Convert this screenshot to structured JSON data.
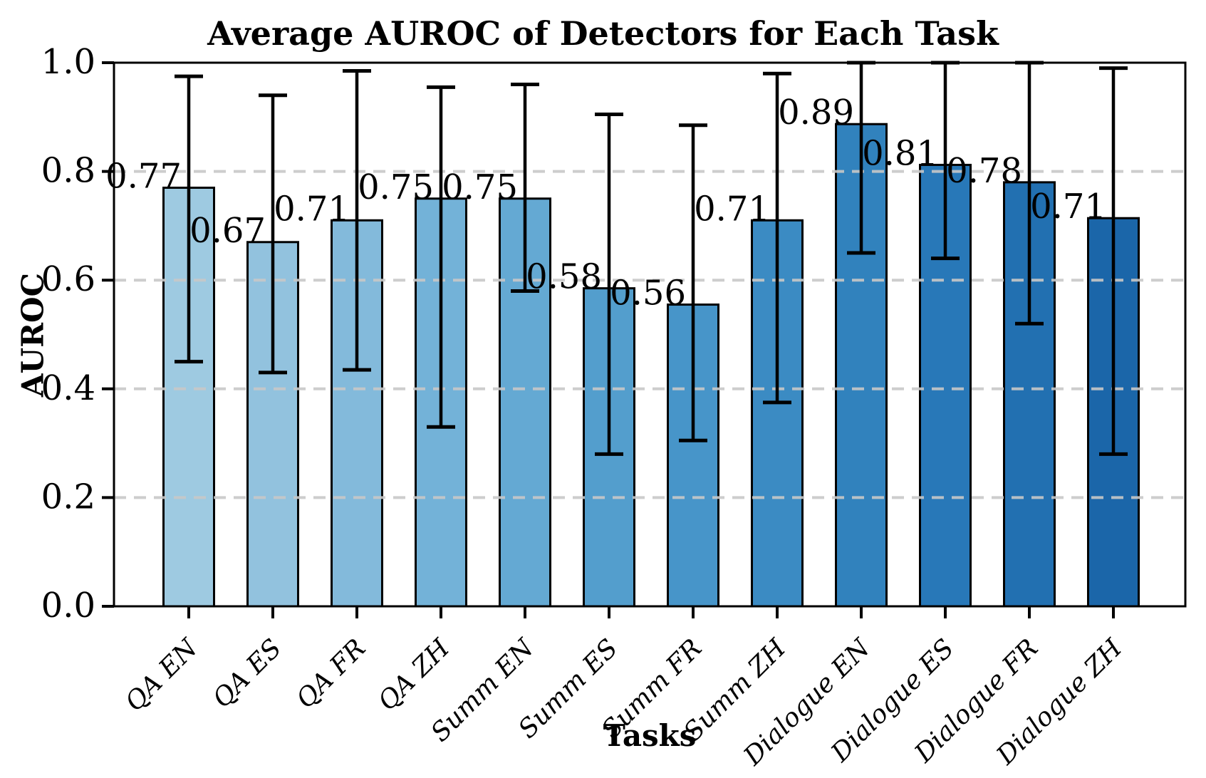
{
  "figure": {
    "background": "#ffffff"
  },
  "chart_data": {
    "type": "bar",
    "title": "Average AUROC of Detectors for Each Task",
    "xlabel": "Tasks",
    "ylabel": "AUROC",
    "ylim": [
      0.0,
      1.0
    ],
    "ytick_labels": [
      "0.0",
      "0.2",
      "0.4",
      "0.6",
      "0.8",
      "1.0"
    ],
    "ytick_values": [
      0.0,
      0.2,
      0.4,
      0.6,
      0.8,
      1.0
    ],
    "grid": {
      "show": true,
      "values": [
        0.2,
        0.4,
        0.6,
        0.8
      ],
      "style": "dashed",
      "color": "#c8c8c8"
    },
    "legend": "none",
    "axis_color": "#000000",
    "bar_edge_color": "#000000",
    "error_bar_color": "#000000",
    "categories": [
      "QA EN",
      "QA ES",
      "QA FR",
      "QA ZH",
      "Summ EN",
      "Summ ES",
      "Summ FR",
      "Summ ZH",
      "Dialogue EN",
      "Dialogue ES",
      "Dialogue FR",
      "Dialogue ZH"
    ],
    "series": [
      {
        "name": "Average AUROC",
        "values": [
          0.77,
          0.67,
          0.71,
          0.75,
          0.75,
          0.585,
          0.555,
          0.71,
          0.887,
          0.812,
          0.78,
          0.714
        ],
        "value_labels": [
          "0.77",
          "0.67",
          "0.71",
          "0.75",
          "0.75",
          "0.58",
          "0.56",
          "0.71",
          "0.89",
          "0.81",
          "0.78",
          "0.71"
        ],
        "error_bottom": [
          0.45,
          0.43,
          0.435,
          0.33,
          0.58,
          0.28,
          0.305,
          0.375,
          0.65,
          0.64,
          0.52,
          0.28
        ],
        "error_top": [
          0.975,
          0.94,
          0.985,
          0.955,
          0.96,
          0.905,
          0.885,
          0.98,
          1.0,
          1.0,
          1.0,
          0.99
        ],
        "bar_colors": [
          "#9ecae1",
          "#92c2de",
          "#83badb",
          "#73b2d8",
          "#64a9d3",
          "#539ecd",
          "#4795c9",
          "#3b8bc3",
          "#3182bd",
          "#2878b8",
          "#2270b1",
          "#1b66a9"
        ]
      }
    ]
  }
}
